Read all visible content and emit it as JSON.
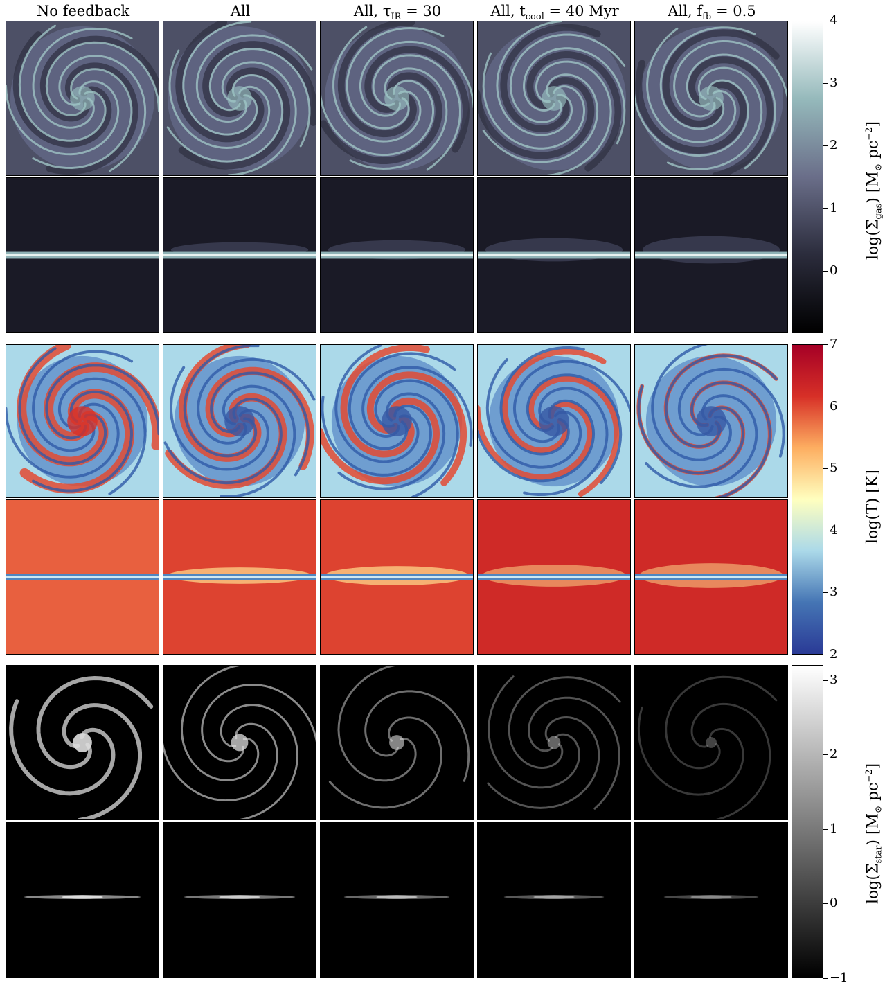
{
  "columns": [
    {
      "main": "No feedback",
      "sub": "",
      "tail": ""
    },
    {
      "main": "All",
      "sub": "",
      "tail": ""
    },
    {
      "main": "All, τ",
      "sub": "IR",
      "tail": " = 30"
    },
    {
      "main": "All, t",
      "sub": "cool",
      "tail": " = 40 Myr"
    },
    {
      "main": "All, f",
      "sub": "fb",
      "tail": " = 0.5"
    }
  ],
  "colorbars": [
    {
      "name": "gas",
      "label_pre": "log(Σ",
      "label_sub": "gas",
      "label_mid": ")  [M",
      "label_sun": "⊙",
      "label_unit": " pc",
      "label_sup": "−2",
      "label_end": "]",
      "min": -1,
      "max": 4,
      "ticks": [
        "4",
        "3",
        "2",
        "1",
        "0"
      ],
      "colors": [
        "#000000",
        "#2b2c3c",
        "#6a6e89",
        "#95b9bb",
        "#ffffff"
      ]
    },
    {
      "name": "temperature",
      "label_text": "log(T) [K]",
      "min": 2,
      "max": 7,
      "ticks": [
        "7",
        "6",
        "5",
        "4",
        "3",
        "2"
      ],
      "colors": [
        "#2a3a96",
        "#4575b4",
        "#abd9e9",
        "#ffffbf",
        "#fdae61",
        "#d73027",
        "#a50026"
      ]
    },
    {
      "name": "stars",
      "label_pre": "log(Σ",
      "label_sub": "star",
      "label_mid": ")  [M",
      "label_sun": "⊙",
      "label_unit": " pc",
      "label_sup": "−2",
      "label_end": "]",
      "min": -1,
      "max": 3.2,
      "ticks": [
        "3",
        "2",
        "1",
        "0",
        "−1"
      ],
      "colors": [
        "#000000",
        "#ffffff"
      ]
    }
  ]
}
